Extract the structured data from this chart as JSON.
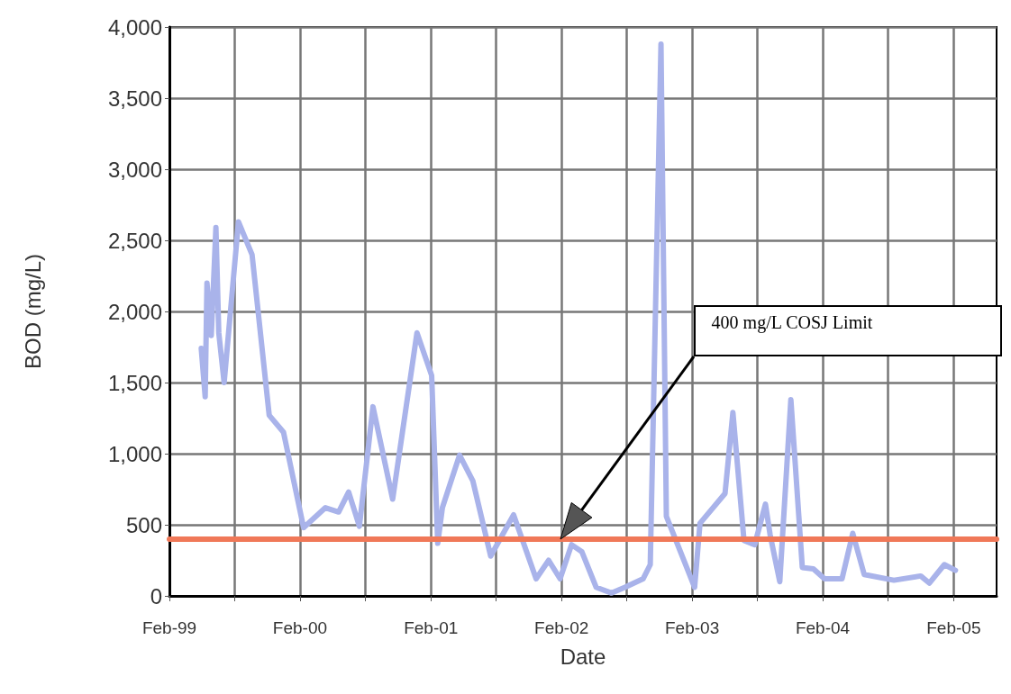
{
  "chart_data": {
    "type": "line",
    "xlabel": "Date",
    "ylabel": "BOD (mg/L)",
    "x": [
      "1999-05-01",
      "1999-05-12",
      "1999-05-17",
      "1999-05-29",
      "1999-06-11",
      "1999-06-19",
      "1999-07-04",
      "1999-08-13",
      "1999-09-20",
      "1999-11-07",
      "1999-12-17",
      "2000-02-11",
      "2000-04-12",
      "2000-05-19",
      "2000-06-16",
      "2000-07-16",
      "2000-08-23",
      "2000-10-17",
      "2000-12-24",
      "2001-02-03",
      "2001-02-20",
      "2001-03-05",
      "2001-04-22",
      "2001-05-29",
      "2001-07-18",
      "2001-09-20",
      "2001-11-22",
      "2001-12-27",
      "2002-01-28",
      "2002-03-01",
      "2002-03-30",
      "2002-05-09",
      "2002-06-21",
      "2002-07-28",
      "2002-09-17",
      "2002-10-07",
      "2002-11-06",
      "2002-11-21",
      "2003-02-08",
      "2003-02-23",
      "2003-05-04",
      "2003-05-26",
      "2003-06-26",
      "2003-07-26",
      "2003-08-25",
      "2003-09-07",
      "2003-10-04",
      "2003-11-04",
      "2003-12-06",
      "2004-01-06",
      "2004-02-06",
      "2004-03-26",
      "2004-04-25",
      "2004-05-27",
      "2004-08-18",
      "2004-11-01",
      "2004-11-25",
      "2005-01-06",
      "2005-02-06"
    ],
    "series": [
      {
        "color": "#a9b3ea",
        "values": [
          1740,
          1400,
          2200,
          1830,
          2590,
          1850,
          1500,
          2630,
          2400,
          1270,
          1150,
          480,
          620,
          590,
          730,
          490,
          1330,
          680,
          1850,
          1550,
          370,
          620,
          990,
          810,
          280,
          570,
          120,
          250,
          120,
          360,
          310,
          60,
          20,
          60,
          120,
          220,
          3880,
          560,
          60,
          510,
          720,
          1290,
          390,
          360,
          645,
          430,
          100,
          1380,
          200,
          190,
          120,
          120,
          440,
          150,
          110,
          140,
          90,
          220,
          180
        ]
      }
    ],
    "xlim": [
      "1999-02-01",
      "2005-06-01"
    ],
    "xticks": [
      {
        "value": "1999-02-01",
        "label": "Feb-99"
      },
      {
        "value": "1999-08-01",
        "label": null
      },
      {
        "value": "2000-02-01",
        "label": "Feb-00"
      },
      {
        "value": "2000-08-01",
        "label": null
      },
      {
        "value": "2001-02-01",
        "label": "Feb-01"
      },
      {
        "value": "2001-08-01",
        "label": null
      },
      {
        "value": "2002-02-01",
        "label": "Feb-02"
      },
      {
        "value": "2002-08-01",
        "label": null
      },
      {
        "value": "2003-02-01",
        "label": "Feb-03"
      },
      {
        "value": "2003-08-01",
        "label": null
      },
      {
        "value": "2004-02-01",
        "label": "Feb-04"
      },
      {
        "value": "2004-08-01",
        "label": null
      },
      {
        "value": "2005-02-01",
        "label": "Feb-05"
      }
    ],
    "ylim": [
      0,
      4000
    ],
    "yticks": [
      0,
      {
        "value": 500,
        "label": "500"
      },
      {
        "value": 1000,
        "label": "1,000"
      },
      {
        "value": 1500,
        "label": "1,500"
      },
      {
        "value": 2000,
        "label": "2,000"
      },
      {
        "value": 2500,
        "label": "2,500"
      },
      {
        "value": 3000,
        "label": "3,000"
      },
      {
        "value": 3500,
        "label": "3,500"
      },
      {
        "value": 4000,
        "label": "4,000"
      }
    ],
    "grid": true,
    "marker": "none",
    "line_style": "solid",
    "ref_lines": [
      {
        "axis": "y",
        "value": 400,
        "color": "#f07858"
      }
    ],
    "annotations": [
      "400 mg/L COSJ Limit"
    ]
  }
}
